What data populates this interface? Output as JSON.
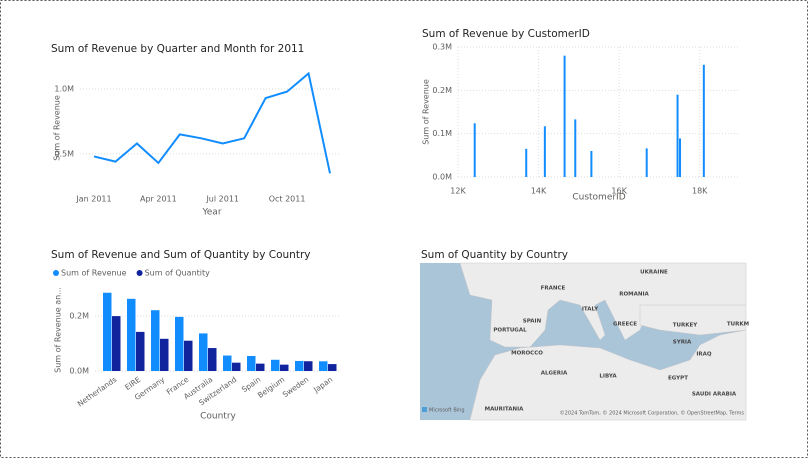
{
  "chart_data": [
    {
      "type": "line",
      "title": "Sum of Revenue by Quarter and Month for 2011",
      "x_label": "Year",
      "y_label": "Sum of Revenue",
      "x": [
        "2011-01",
        "2011-02",
        "2011-03",
        "2011-04",
        "2011-05",
        "2011-06",
        "2011-07",
        "2011-08",
        "2011-09",
        "2011-10",
        "2011-11",
        "2011-12"
      ],
      "values": [
        480000,
        440000,
        580000,
        430000,
        650000,
        620000,
        580000,
        620000,
        930000,
        980000,
        1120000,
        350000
      ],
      "color": "#118dff",
      "xlim": [
        "2011-01",
        "2011-12"
      ],
      "xticks": [
        {
          "value": "2011-01",
          "label": "Jan 2011"
        },
        {
          "value": "2011-04",
          "label": "Apr 2011"
        },
        {
          "value": "2011-07",
          "label": "Jul 2011"
        },
        {
          "value": "2011-10",
          "label": "Oct 2011"
        }
      ],
      "ylim": [
        260000,
        1185000
      ],
      "yticks": [
        {
          "value": 500000,
          "label": "0.5M"
        },
        {
          "value": 1000000,
          "label": "1.0M"
        }
      ],
      "grid": true
    },
    {
      "type": "bar",
      "title": "Sum of Revenue by CustomerID",
      "x_label": "CustomerID",
      "y_label": "Sum of Revenue",
      "x": [
        12415,
        13694,
        14156,
        14646,
        14911,
        15311,
        16684,
        17450,
        17511,
        18102
      ],
      "values": [
        124000,
        65000,
        117000,
        280000,
        133000,
        60000,
        66000,
        190000,
        89000,
        259000
      ],
      "color": "#118dff",
      "xlim": [
        12000,
        19000
      ],
      "xticks": [
        {
          "value": 12000,
          "label": "12K"
        },
        {
          "value": 14000,
          "label": "14K"
        },
        {
          "value": 16000,
          "label": "16K"
        },
        {
          "value": 18000,
          "label": "18K"
        }
      ],
      "ylim": [
        0,
        300000
      ],
      "yticks": [
        {
          "value": 0,
          "label": "0.0M"
        },
        {
          "value": 100000,
          "label": "0.1M"
        },
        {
          "value": 200000,
          "label": "0.2M"
        },
        {
          "value": 300000,
          "label": "0.3M"
        }
      ],
      "grid": true
    },
    {
      "type": "bar",
      "title": "Sum of Revenue and Sum of Quantity by Country",
      "x_label": "Country",
      "y_label": "Sum of Revenue an...",
      "categories": [
        "Netherlands",
        "EIRE",
        "Germany",
        "France",
        "Australia",
        "Switzerland",
        "Spain",
        "Belgium",
        "Sweden",
        "Japan"
      ],
      "series": [
        {
          "name": "Sum of Revenue",
          "color": "#118dff",
          "values": [
            285446,
            263276,
            221698,
            197404,
            137077,
            56385,
            54775,
            40911,
            36596,
            35341
          ]
        },
        {
          "name": "Sum of Quantity",
          "color": "#12239e",
          "values": [
            200128,
            142637,
            117448,
            110480,
            83653,
            30325,
            26824,
            23152,
            35637,
            25218
          ]
        }
      ],
      "ylim": [
        0,
        310000
      ],
      "yticks": [
        {
          "value": 0,
          "label": "0.0M"
        },
        {
          "value": 200000,
          "label": "0.2M"
        }
      ],
      "grid": true,
      "legend": "top-left"
    },
    {
      "type": "map",
      "title": "Sum of Quantity by Country",
      "labels": [
        "UKRAINE",
        "FRANCE",
        "ITALY",
        "ROMANIA",
        "PORTUGAL",
        "SPAIN",
        "GREECE",
        "TURKEY",
        "TURKM",
        "SYRIA",
        "IRAQ",
        "MOROCCO",
        "ALGERIA",
        "LIBYA",
        "EGYPT",
        "SAUDI ARABIA",
        "MAURITANIA"
      ],
      "logo": "Microsoft Bing",
      "attribution": "©2024 TomTom, © 2024 Microsoft Corporation, © OpenStreetMap, Terms"
    }
  ]
}
